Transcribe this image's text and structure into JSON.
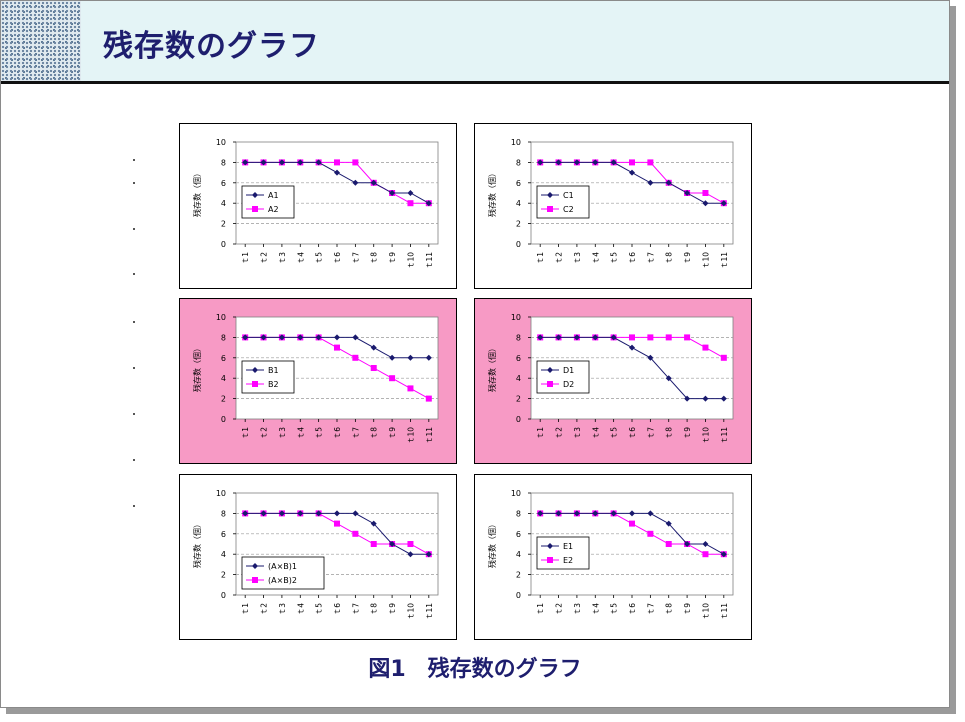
{
  "page_title": "残存数のグラフ",
  "caption": "図1　残存数のグラフ",
  "colors": {
    "series1": "#1a1a6e",
    "series2": "#ff00ff",
    "pink_panel": "#f79ac5",
    "title": "#1e1e6e"
  },
  "chart_data": [
    {
      "type": "line",
      "ylabel": "残存数（個）",
      "ylim": [
        0,
        10
      ],
      "yticks": [
        0,
        2,
        4,
        6,
        8,
        10
      ],
      "categories": [
        "ｔ1",
        "ｔ2",
        "ｔ3",
        "ｔ4",
        "ｔ5",
        "ｔ6",
        "ｔ7",
        "ｔ8",
        "ｔ9",
        "ｔ10",
        "ｔ11"
      ],
      "highlighted": false,
      "legend": "left-middle",
      "series": [
        {
          "name": "A1",
          "marker": "diamond",
          "values": [
            8,
            8,
            8,
            8,
            8,
            7,
            6,
            6,
            5,
            5,
            4
          ]
        },
        {
          "name": "A2",
          "marker": "square",
          "values": [
            8,
            8,
            8,
            8,
            8,
            8,
            8,
            6,
            5,
            4,
            4
          ]
        }
      ]
    },
    {
      "type": "line",
      "ylabel": "残存数（個）",
      "ylim": [
        0,
        10
      ],
      "yticks": [
        0,
        2,
        4,
        6,
        8,
        10
      ],
      "categories": [
        "ｔ1",
        "ｔ2",
        "ｔ3",
        "ｔ4",
        "ｔ5",
        "ｔ6",
        "ｔ7",
        "ｔ8",
        "ｔ9",
        "ｔ10",
        "ｔ11"
      ],
      "highlighted": false,
      "legend": "left-middle",
      "series": [
        {
          "name": "C1",
          "marker": "diamond",
          "values": [
            8,
            8,
            8,
            8,
            8,
            7,
            6,
            6,
            5,
            4,
            4
          ]
        },
        {
          "name": "C2",
          "marker": "square",
          "values": [
            8,
            8,
            8,
            8,
            8,
            8,
            8,
            6,
            5,
            5,
            4
          ]
        }
      ]
    },
    {
      "type": "line",
      "ylabel": "残存数（個）",
      "ylim": [
        0,
        10
      ],
      "yticks": [
        0,
        2,
        4,
        6,
        8,
        10
      ],
      "categories": [
        "ｔ1",
        "ｔ2",
        "ｔ3",
        "ｔ4",
        "ｔ5",
        "ｔ6",
        "ｔ7",
        "ｔ8",
        "ｔ9",
        "ｔ10",
        "ｔ11"
      ],
      "highlighted": true,
      "legend": "left-middle",
      "series": [
        {
          "name": "B1",
          "marker": "diamond",
          "values": [
            8,
            8,
            8,
            8,
            8,
            8,
            8,
            7,
            6,
            6,
            6
          ]
        },
        {
          "name": "B2",
          "marker": "square",
          "values": [
            8,
            8,
            8,
            8,
            8,
            7,
            6,
            5,
            4,
            3,
            2
          ]
        }
      ]
    },
    {
      "type": "line",
      "ylabel": "残存数（個）",
      "ylim": [
        0,
        10
      ],
      "yticks": [
        0,
        2,
        4,
        6,
        8,
        10
      ],
      "categories": [
        "ｔ1",
        "ｔ2",
        "ｔ3",
        "ｔ4",
        "ｔ5",
        "ｔ6",
        "ｔ7",
        "ｔ8",
        "ｔ9",
        "ｔ10",
        "ｔ11"
      ],
      "highlighted": true,
      "legend": "left-middle",
      "series": [
        {
          "name": "D1",
          "marker": "diamond",
          "values": [
            8,
            8,
            8,
            8,
            8,
            7,
            6,
            4,
            2,
            2,
            2
          ]
        },
        {
          "name": "D2",
          "marker": "square",
          "values": [
            8,
            8,
            8,
            8,
            8,
            8,
            8,
            8,
            8,
            7,
            6
          ]
        }
      ]
    },
    {
      "type": "line",
      "ylabel": "残存数（個）",
      "ylim": [
        0,
        10
      ],
      "yticks": [
        0,
        2,
        4,
        6,
        8,
        10
      ],
      "categories": [
        "ｔ1",
        "ｔ2",
        "ｔ3",
        "ｔ4",
        "ｔ5",
        "ｔ6",
        "ｔ7",
        "ｔ8",
        "ｔ9",
        "ｔ10",
        "ｔ11"
      ],
      "highlighted": false,
      "legend": "left-bottom",
      "series": [
        {
          "name": "(A×B)1",
          "marker": "diamond",
          "values": [
            8,
            8,
            8,
            8,
            8,
            8,
            8,
            7,
            5,
            4,
            4
          ]
        },
        {
          "name": "(A×B)2",
          "marker": "square",
          "values": [
            8,
            8,
            8,
            8,
            8,
            7,
            6,
            5,
            5,
            5,
            4
          ]
        }
      ]
    },
    {
      "type": "line",
      "ylabel": "残存数（個）",
      "ylim": [
        0,
        10
      ],
      "yticks": [
        0,
        2,
        4,
        6,
        8,
        10
      ],
      "categories": [
        "ｔ1",
        "ｔ2",
        "ｔ3",
        "ｔ4",
        "ｔ5",
        "ｔ6",
        "ｔ7",
        "ｔ8",
        "ｔ9",
        "ｔ10",
        "ｔ11"
      ],
      "highlighted": false,
      "legend": "left-middle",
      "series": [
        {
          "name": "E1",
          "marker": "diamond",
          "values": [
            8,
            8,
            8,
            8,
            8,
            8,
            8,
            7,
            5,
            5,
            4
          ]
        },
        {
          "name": "E2",
          "marker": "square",
          "values": [
            8,
            8,
            8,
            8,
            8,
            7,
            6,
            5,
            5,
            4,
            4
          ]
        }
      ]
    }
  ]
}
